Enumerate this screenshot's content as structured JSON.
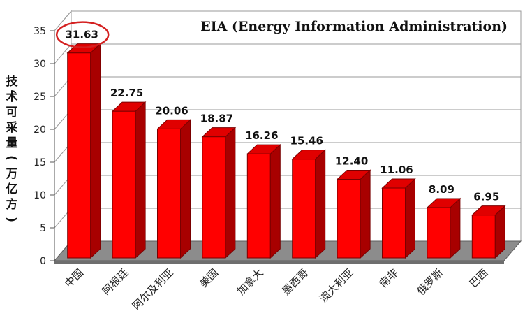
{
  "chart_data": {
    "type": "bar",
    "title": "EIA (Energy Information Administration)",
    "ylabel": "技术可采量(万亿方)",
    "xlabel": "",
    "categories": [
      "中国",
      "阿根廷",
      "阿尔及利亚",
      "美国",
      "加拿大",
      "墨西哥",
      "澳大利亚",
      "南非",
      "俄罗斯",
      "巴西"
    ],
    "values": [
      31.63,
      22.75,
      20.06,
      18.87,
      16.26,
      15.46,
      12.4,
      11.06,
      8.09,
      6.95
    ],
    "value_labels": [
      "31.63",
      "22.75",
      "20.06",
      "18.87",
      "16.26",
      "15.46",
      "12.40",
      "11.06",
      "8.09",
      "6.95"
    ],
    "ylim": [
      0,
      35
    ],
    "yticks": [
      0,
      5,
      10,
      15,
      20,
      25,
      30,
      35
    ],
    "grid": true,
    "style": "3d-bar",
    "bar_color": "#ff0000",
    "highlight_index": 0,
    "highlight_color": "#d42020"
  }
}
